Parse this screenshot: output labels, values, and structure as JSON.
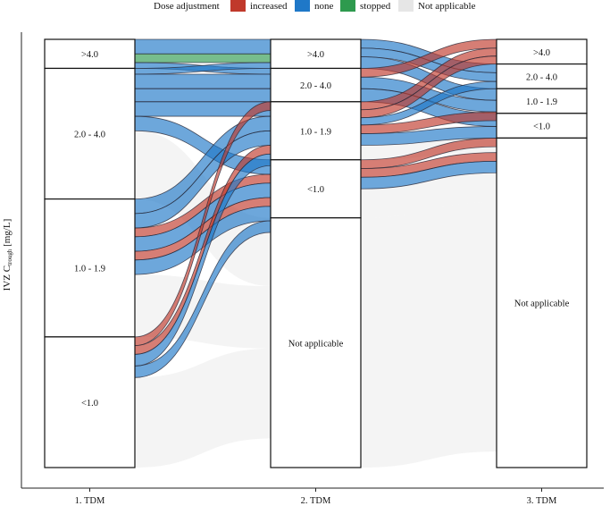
{
  "chart_data": {
    "type": "alluvial",
    "ylabel_main": "IVZ C",
    "ylabel_sub": "trough",
    "ylabel_unit": " [mg/L]",
    "legend_title": "Dose adjustment",
    "legend": [
      {
        "key": "increased",
        "label": "increased",
        "color": "#c0392b"
      },
      {
        "key": "none",
        "label": "none",
        "color": "#1f78c8"
      },
      {
        "key": "stopped",
        "label": "stopped",
        "color": "#2e9a4e"
      },
      {
        "key": "na",
        "label": "Not applicable",
        "color": "#e6e6e6"
      }
    ],
    "axes": [
      {
        "label": "1. TDM",
        "strata": [
          {
            "label": ">4.0",
            "size": 2
          },
          {
            "label": "2.0 - 4.0",
            "size": 9
          },
          {
            "label": "1.0 - 1.9",
            "size": 9.5
          },
          {
            "label": "<1.0",
            "size": 9
          }
        ]
      },
      {
        "label": "2. TDM",
        "strata": [
          {
            "label": ">4.0",
            "size": 2
          },
          {
            "label": "2.0 - 4.0",
            "size": 2.3
          },
          {
            "label": "1.0 - 1.9",
            "size": 4
          },
          {
            "label": "<1.0",
            "size": 4
          },
          {
            "label": "Not applicable",
            "size": 17.2
          }
        ]
      },
      {
        "label": "3. TDM",
        "strata": [
          {
            "label": ">4.0",
            "size": 1.7
          },
          {
            "label": "2.0 - 4.0",
            "size": 1.7
          },
          {
            "label": "1.0 - 1.9",
            "size": 1.7
          },
          {
            "label": "<1.0",
            "size": 1.7
          },
          {
            "label": "Not applicable",
            "size": 22.7
          }
        ]
      }
    ],
    "flows12": [
      {
        "from": 0,
        "to": 0,
        "n": 1,
        "adj": "none"
      },
      {
        "from": 0,
        "to": 0,
        "n": 0.6,
        "adj": "stopped"
      },
      {
        "from": 0,
        "to": 1,
        "n": 0.4,
        "adj": "none"
      },
      {
        "from": 1,
        "to": 0,
        "n": 0.4,
        "adj": "none"
      },
      {
        "from": 1,
        "to": 1,
        "n": 1,
        "adj": "none"
      },
      {
        "from": 1,
        "to": 1,
        "n": 0.9,
        "adj": "none"
      },
      {
        "from": 1,
        "to": 2,
        "n": 1,
        "adj": "none"
      },
      {
        "from": 1,
        "to": 3,
        "n": 1,
        "adj": "none"
      },
      {
        "from": 1,
        "to": 4,
        "n": 4.7,
        "adj": "na"
      },
      {
        "from": 2,
        "to": 2,
        "n": 1,
        "adj": "none"
      },
      {
        "from": 2,
        "to": 2,
        "n": 1,
        "adj": "none"
      },
      {
        "from": 2,
        "to": 3,
        "n": 0.6,
        "adj": "increased"
      },
      {
        "from": 2,
        "to": 3,
        "n": 1,
        "adj": "none"
      },
      {
        "from": 2,
        "to": 3,
        "n": 0.6,
        "adj": "increased"
      },
      {
        "from": 2,
        "to": 3,
        "n": 1,
        "adj": "none"
      },
      {
        "from": 2,
        "to": 4,
        "n": 4.3,
        "adj": "na"
      },
      {
        "from": 3,
        "to": 1,
        "n": 0.6,
        "adj": "increased"
      },
      {
        "from": 3,
        "to": 2,
        "n": 0.6,
        "adj": "increased"
      },
      {
        "from": 3,
        "to": 2,
        "n": 0.8,
        "adj": "none"
      },
      {
        "from": 3,
        "to": 3,
        "n": 0.8,
        "adj": "none"
      },
      {
        "from": 3,
        "to": 4,
        "n": 6.2,
        "adj": "na"
      }
    ],
    "flows23": [
      {
        "from": 0,
        "to": 1,
        "n": 0.6,
        "adj": "none"
      },
      {
        "from": 0,
        "to": 1,
        "n": 0.6,
        "adj": "none"
      },
      {
        "from": 0,
        "to": 2,
        "n": 0.8,
        "adj": "none"
      },
      {
        "from": 1,
        "to": 0,
        "n": 0.6,
        "adj": "increased"
      },
      {
        "from": 1,
        "to": 2,
        "n": 0.8,
        "adj": "none"
      },
      {
        "from": 1,
        "to": 3,
        "n": 0.9,
        "adj": "none"
      },
      {
        "from": 2,
        "to": 0,
        "n": 0.55,
        "adj": "increased"
      },
      {
        "from": 2,
        "to": 0,
        "n": 0.55,
        "adj": "increased"
      },
      {
        "from": 2,
        "to": 1,
        "n": 0.5,
        "adj": "none"
      },
      {
        "from": 2,
        "to": 2,
        "n": 0.6,
        "adj": "increased"
      },
      {
        "from": 2,
        "to": 3,
        "n": 0.8,
        "adj": "none"
      },
      {
        "from": 2,
        "to": 4,
        "n": 1,
        "adj": "na"
      },
      {
        "from": 3,
        "to": 3,
        "n": 0.6,
        "adj": "increased"
      },
      {
        "from": 3,
        "to": 4,
        "n": 0.6,
        "adj": "increased"
      },
      {
        "from": 3,
        "to": 4,
        "n": 0.8,
        "adj": "none"
      },
      {
        "from": 3,
        "to": 4,
        "n": 2,
        "adj": "na"
      },
      {
        "from": 4,
        "to": 4,
        "n": 17.2,
        "adj": "na"
      }
    ]
  }
}
